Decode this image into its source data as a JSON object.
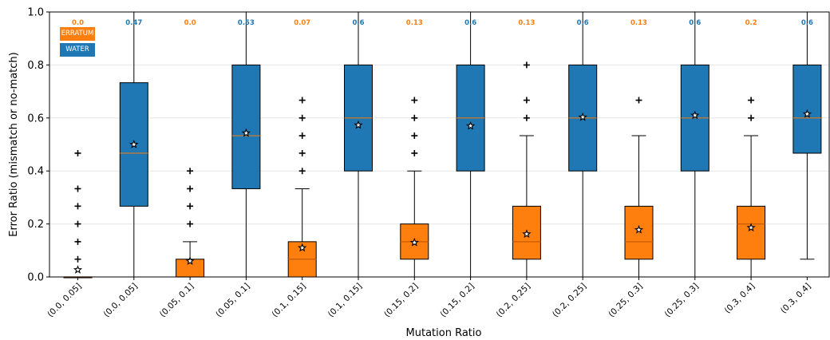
{
  "chart_data": {
    "type": "box",
    "xlabel": "Mutation Ratio",
    "ylabel": "Error Ratio (mismatch or no-match)",
    "ylim": [
      0,
      1
    ],
    "yticks": [
      0.0,
      0.2,
      0.4,
      0.6,
      0.8,
      1.0
    ],
    "ytick_labels": [
      "0.0",
      "0.2",
      "0.4",
      "0.6",
      "0.8",
      "1.0"
    ],
    "grid": "horizontal",
    "legend_position": "top-left",
    "series": [
      {
        "name": "ERRATUM",
        "color": "#ff7f0e"
      },
      {
        "name": "WATER",
        "color": "#1f77b4"
      }
    ],
    "boxes": [
      {
        "label": "(0.0, 0.05]",
        "series": "ERRATUM",
        "annotation": "0.0",
        "whisker_low": 0.0,
        "q1": 0.0,
        "median": 0.0,
        "q3": 0.0,
        "whisker_high": 0.0,
        "mean": 0.027,
        "outliers": [
          0.067,
          0.133,
          0.2,
          0.267,
          0.333,
          0.467
        ]
      },
      {
        "label": "(0.0, 0.05]",
        "series": "WATER",
        "annotation": "0.47",
        "whisker_low": 0.0,
        "q1": 0.267,
        "median": 0.467,
        "q3": 0.733,
        "whisker_high": 1.0,
        "mean": 0.5,
        "outliers": []
      },
      {
        "label": "(0.05, 0.1]",
        "series": "ERRATUM",
        "annotation": "0.0",
        "whisker_low": 0.0,
        "q1": 0.0,
        "median": 0.0,
        "q3": 0.067,
        "whisker_high": 0.133,
        "mean": 0.06,
        "outliers": [
          0.2,
          0.267,
          0.333,
          0.4
        ]
      },
      {
        "label": "(0.05, 0.1]",
        "series": "WATER",
        "annotation": "0.53",
        "whisker_low": 0.0,
        "q1": 0.333,
        "median": 0.533,
        "q3": 0.8,
        "whisker_high": 1.0,
        "mean": 0.543,
        "outliers": []
      },
      {
        "label": "(0.1, 0.15]",
        "series": "ERRATUM",
        "annotation": "0.07",
        "whisker_low": 0.0,
        "q1": 0.0,
        "median": 0.067,
        "q3": 0.133,
        "whisker_high": 0.333,
        "mean": 0.11,
        "outliers": [
          0.4,
          0.467,
          0.533,
          0.6,
          0.667
        ]
      },
      {
        "label": "(0.1, 0.15]",
        "series": "WATER",
        "annotation": "0.6",
        "whisker_low": 0.0,
        "q1": 0.4,
        "median": 0.6,
        "q3": 0.8,
        "whisker_high": 1.0,
        "mean": 0.573,
        "outliers": []
      },
      {
        "label": "(0.15, 0.2]",
        "series": "ERRATUM",
        "annotation": "0.13",
        "whisker_low": 0.0,
        "q1": 0.067,
        "median": 0.133,
        "q3": 0.2,
        "whisker_high": 0.4,
        "mean": 0.13,
        "outliers": [
          0.467,
          0.533,
          0.6,
          0.667
        ]
      },
      {
        "label": "(0.15, 0.2]",
        "series": "WATER",
        "annotation": "0.6",
        "whisker_low": 0.0,
        "q1": 0.4,
        "median": 0.6,
        "q3": 0.8,
        "whisker_high": 1.0,
        "mean": 0.57,
        "outliers": []
      },
      {
        "label": "(0.2, 0.25]",
        "series": "ERRATUM",
        "annotation": "0.13",
        "whisker_low": 0.0,
        "q1": 0.067,
        "median": 0.133,
        "q3": 0.267,
        "whisker_high": 0.533,
        "mean": 0.162,
        "outliers": [
          0.6,
          0.667,
          0.8
        ]
      },
      {
        "label": "(0.2, 0.25]",
        "series": "WATER",
        "annotation": "0.6",
        "whisker_low": 0.0,
        "q1": 0.4,
        "median": 0.6,
        "q3": 0.8,
        "whisker_high": 1.0,
        "mean": 0.603,
        "outliers": []
      },
      {
        "label": "(0.25, 0.3]",
        "series": "ERRATUM",
        "annotation": "0.13",
        "whisker_low": 0.0,
        "q1": 0.067,
        "median": 0.133,
        "q3": 0.267,
        "whisker_high": 0.533,
        "mean": 0.178,
        "outliers": [
          0.667
        ]
      },
      {
        "label": "(0.25, 0.3]",
        "series": "WATER",
        "annotation": "0.6",
        "whisker_low": 0.0,
        "q1": 0.4,
        "median": 0.6,
        "q3": 0.8,
        "whisker_high": 1.0,
        "mean": 0.61,
        "outliers": []
      },
      {
        "label": "(0.3, 0.4]",
        "series": "ERRATUM",
        "annotation": "0.2",
        "whisker_low": 0.0,
        "q1": 0.067,
        "median": 0.2,
        "q3": 0.267,
        "whisker_high": 0.533,
        "mean": 0.186,
        "outliers": [
          0.6,
          0.667
        ]
      },
      {
        "label": "(0.3, 0.4]",
        "series": "WATER",
        "annotation": "0.6",
        "whisker_low": 0.067,
        "q1": 0.467,
        "median": 0.6,
        "q3": 0.8,
        "whisker_high": 1.0,
        "mean": 0.615,
        "outliers": []
      }
    ]
  }
}
